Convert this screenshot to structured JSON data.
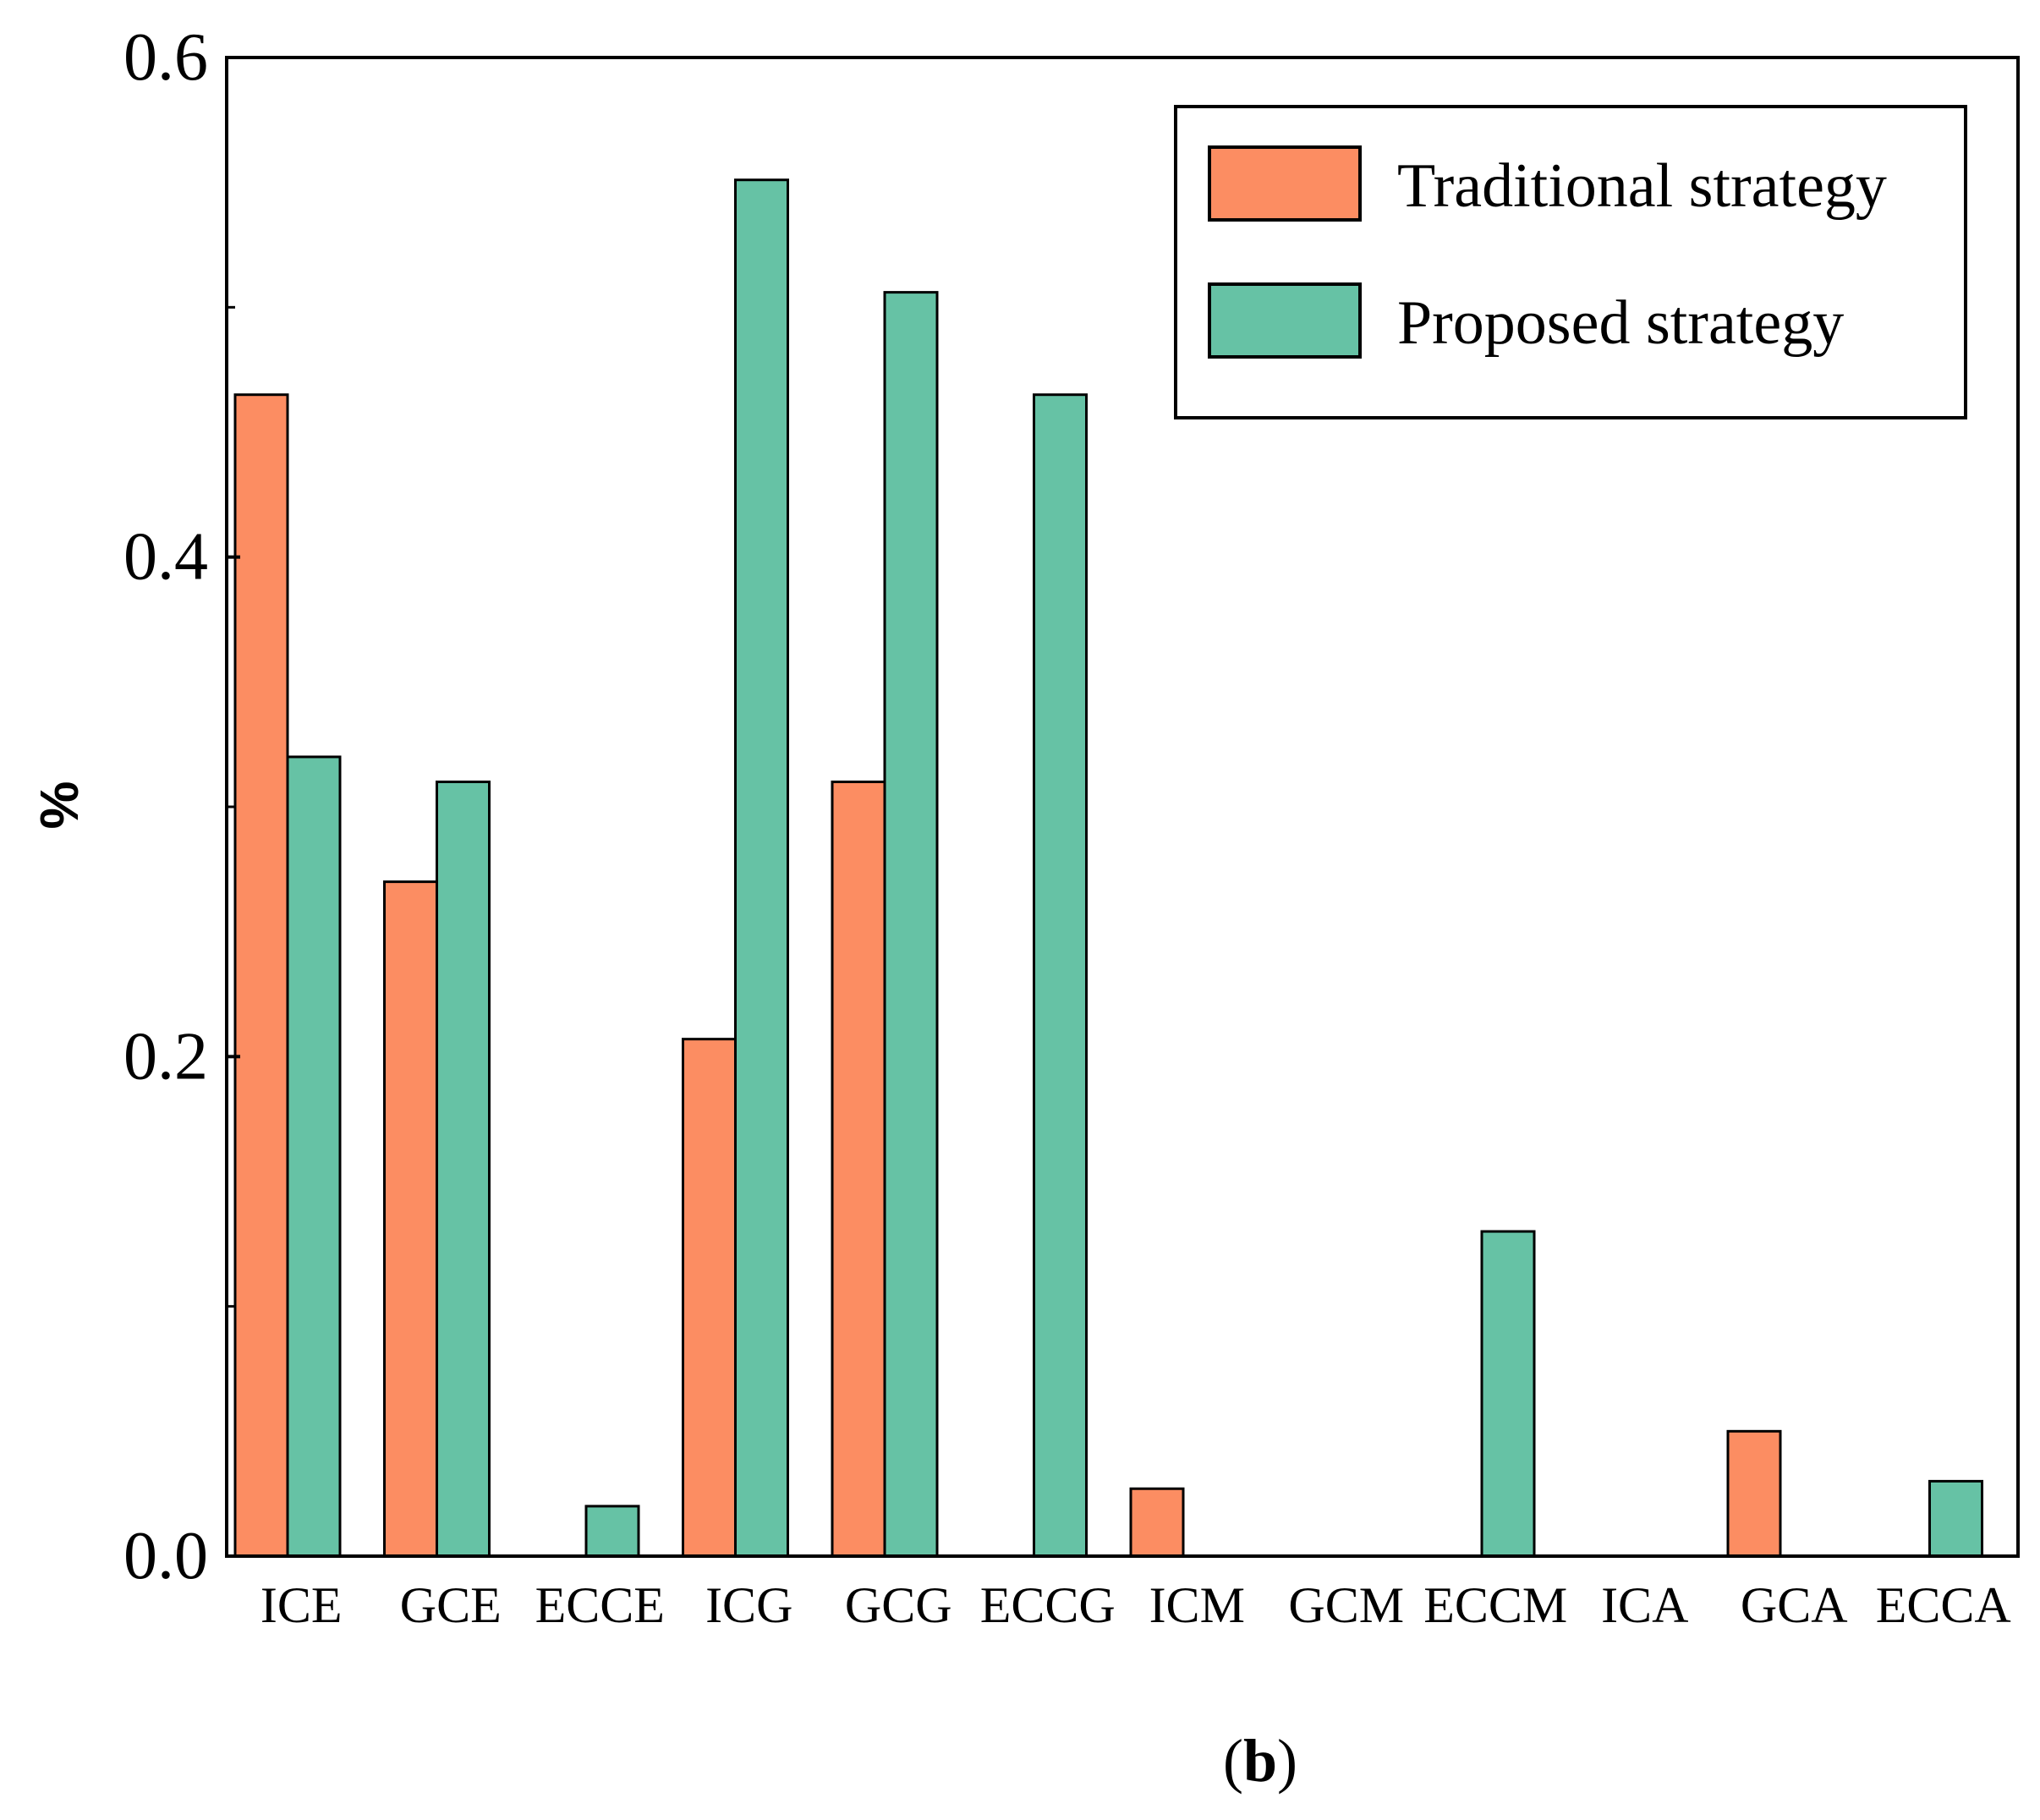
{
  "chart_data": {
    "type": "bar",
    "title": "",
    "xlabel": "",
    "ylabel": "%",
    "ylim": [
      0,
      0.6
    ],
    "y_ticks": [
      0.0,
      0.2,
      0.4,
      0.6
    ],
    "y_tick_labels": [
      "0.0",
      "0.2",
      "0.4",
      "0.6"
    ],
    "y_minor_ticks": [
      0.1,
      0.3,
      0.5
    ],
    "grid": false,
    "legend_position": "top-right",
    "categories": [
      "ICE",
      "GCE",
      "ECCE",
      "ICG",
      "GCG",
      "ECCG",
      "ICM",
      "GCM",
      "ECCM",
      "ICA",
      "GCA",
      "ECCA"
    ],
    "series": [
      {
        "name": "Traditional strategy",
        "color": "#FC8D62",
        "values": [
          0.465,
          0.27,
          0,
          0.207,
          0.31,
          0,
          0.027,
          0,
          0,
          0,
          0.05,
          0
        ]
      },
      {
        "name": "Proposed strategy",
        "color": "#66C2A5",
        "values": [
          0.32,
          0.31,
          0.02,
          0.551,
          0.506,
          0.465,
          0,
          0,
          0.13,
          0,
          0,
          0.03
        ]
      }
    ],
    "panel_label": {
      "open": "(",
      "letter": "b",
      "close": ")"
    }
  }
}
